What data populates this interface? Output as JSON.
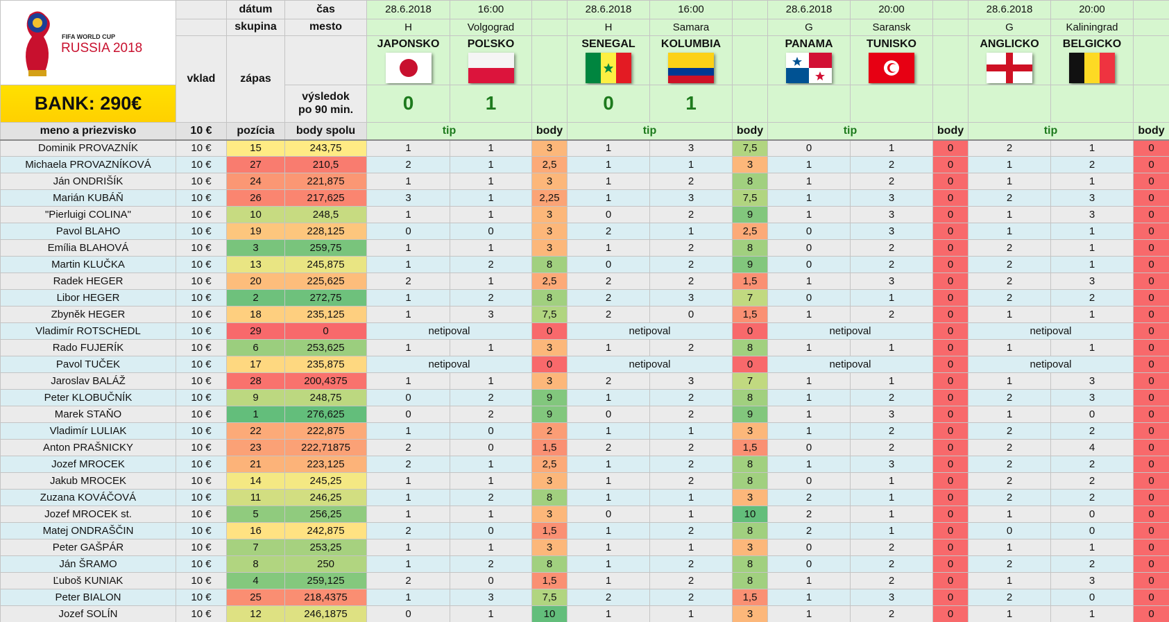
{
  "logo": {
    "line1": "FIFA WORLD CUP",
    "line2": "RUSSIA 2018"
  },
  "bank": "BANK: 290€",
  "labels": {
    "date": "dátum",
    "group": "skupina",
    "time": "čas",
    "city": "mesto",
    "stake": "vklad",
    "match": "zápas",
    "result": [
      "výsledok",
      "po 90 min."
    ],
    "stake_amount": "10 €",
    "name": "meno a priezvisko",
    "position": "pozícia",
    "total": "body spolu",
    "tip": "tip",
    "points": "body"
  },
  "matches": [
    {
      "date": "28.6.2018",
      "time": "16:00",
      "group": "H",
      "city": "Volgograd",
      "teams": [
        "JAPONSKO",
        "POĽSKO"
      ],
      "score": [
        "0",
        "1"
      ]
    },
    {
      "date": "28.6.2018",
      "time": "16:00",
      "group": "H",
      "city": "Samara",
      "teams": [
        "SENEGAL",
        "KOLUMBIA"
      ],
      "score": [
        "0",
        "1"
      ]
    },
    {
      "date": "28.6.2018",
      "time": "20:00",
      "group": "G",
      "city": "Saransk",
      "teams": [
        "PANAMA",
        "TUNISKO"
      ]
    },
    {
      "date": "28.6.2018",
      "time": "20:00",
      "group": "G",
      "city": "Kaliningrad",
      "teams": [
        "ANGLICKO",
        "BELGICKO"
      ]
    }
  ],
  "rows": [
    {
      "name": "Dominik PROVAZNÍK",
      "stake": "10 €",
      "position": "15",
      "total": "243,75",
      "picks": [
        [
          "1",
          "1",
          "3"
        ],
        [
          "1",
          "3",
          "7,5"
        ],
        [
          "0",
          "1",
          "0"
        ],
        [
          "2",
          "1",
          "0"
        ]
      ]
    },
    {
      "name": "Michaela PROVAZNÍKOVÁ",
      "stake": "10 €",
      "position": "27",
      "total": "210,5",
      "picks": [
        [
          "2",
          "1",
          "2,5"
        ],
        [
          "1",
          "1",
          "3"
        ],
        [
          "1",
          "2",
          "0"
        ],
        [
          "1",
          "2",
          "0"
        ]
      ]
    },
    {
      "name": "Ján ONDRIŠÍK",
      "stake": "10 €",
      "position": "24",
      "total": "221,875",
      "picks": [
        [
          "1",
          "1",
          "3"
        ],
        [
          "1",
          "2",
          "8"
        ],
        [
          "1",
          "2",
          "0"
        ],
        [
          "1",
          "1",
          "0"
        ]
      ]
    },
    {
      "name": "Marián KUBÁŇ",
      "stake": "10 €",
      "position": "26",
      "total": "217,625",
      "picks": [
        [
          "3",
          "1",
          "2,25"
        ],
        [
          "1",
          "3",
          "7,5"
        ],
        [
          "1",
          "3",
          "0"
        ],
        [
          "2",
          "3",
          "0"
        ]
      ]
    },
    {
      "name": "\"Pierluigi COLINA\"",
      "stake": "10 €",
      "position": "10",
      "total": "248,5",
      "picks": [
        [
          "1",
          "1",
          "3"
        ],
        [
          "0",
          "2",
          "9"
        ],
        [
          "1",
          "3",
          "0"
        ],
        [
          "1",
          "3",
          "0"
        ]
      ]
    },
    {
      "name": "Pavol BLAHO",
      "stake": "10 €",
      "position": "19",
      "total": "228,125",
      "picks": [
        [
          "0",
          "0",
          "3"
        ],
        [
          "2",
          "1",
          "2,5"
        ],
        [
          "0",
          "3",
          "0"
        ],
        [
          "1",
          "1",
          "0"
        ]
      ]
    },
    {
      "name": "Emília BLAHOVÁ",
      "stake": "10 €",
      "position": "3",
      "total": "259,75",
      "picks": [
        [
          "1",
          "1",
          "3"
        ],
        [
          "1",
          "2",
          "8"
        ],
        [
          "0",
          "2",
          "0"
        ],
        [
          "2",
          "1",
          "0"
        ]
      ]
    },
    {
      "name": "Martin KLUČKA",
      "stake": "10 €",
      "position": "13",
      "total": "245,875",
      "picks": [
        [
          "1",
          "2",
          "8"
        ],
        [
          "0",
          "2",
          "9"
        ],
        [
          "0",
          "2",
          "0"
        ],
        [
          "2",
          "1",
          "0"
        ]
      ]
    },
    {
      "name": "Radek HEGER",
      "stake": "10 €",
      "position": "20",
      "total": "225,625",
      "picks": [
        [
          "2",
          "1",
          "2,5"
        ],
        [
          "2",
          "2",
          "1,5"
        ],
        [
          "1",
          "3",
          "0"
        ],
        [
          "2",
          "3",
          "0"
        ]
      ]
    },
    {
      "name": "Libor HEGER",
      "stake": "10 €",
      "position": "2",
      "total": "272,75",
      "picks": [
        [
          "1",
          "2",
          "8"
        ],
        [
          "2",
          "3",
          "7"
        ],
        [
          "0",
          "1",
          "0"
        ],
        [
          "2",
          "2",
          "0"
        ]
      ]
    },
    {
      "name": "Zbyněk HEGER",
      "stake": "10 €",
      "position": "18",
      "total": "235,125",
      "picks": [
        [
          "1",
          "3",
          "7,5"
        ],
        [
          "2",
          "0",
          "1,5"
        ],
        [
          "1",
          "2",
          "0"
        ],
        [
          "1",
          "1",
          "0"
        ]
      ]
    },
    {
      "name": "Vladimír ROTSCHEDL",
      "stake": "10 €",
      "position": "29",
      "total": "0",
      "picks": [
        [
          "netipoval",
          "0"
        ],
        [
          "netipoval",
          "0"
        ],
        [
          "netipoval",
          "0"
        ],
        [
          "netipoval",
          "0"
        ]
      ]
    },
    {
      "name": "Rado FUJERÍK",
      "stake": "10 €",
      "position": "6",
      "total": "253,625",
      "picks": [
        [
          "1",
          "1",
          "3"
        ],
        [
          "1",
          "2",
          "8"
        ],
        [
          "1",
          "1",
          "0"
        ],
        [
          "1",
          "1",
          "0"
        ]
      ]
    },
    {
      "name": "Pavol TUČEK",
      "stake": "10 €",
      "position": "17",
      "total": "235,875",
      "picks": [
        [
          "netipoval",
          "0"
        ],
        [
          "netipoval",
          "0"
        ],
        [
          "netipoval",
          "0"
        ],
        [
          "netipoval",
          "0"
        ]
      ]
    },
    {
      "name": "Jaroslav BALÁŽ",
      "stake": "10 €",
      "position": "28",
      "total": "200,4375",
      "picks": [
        [
          "1",
          "1",
          "3"
        ],
        [
          "2",
          "3",
          "7"
        ],
        [
          "1",
          "1",
          "0"
        ],
        [
          "1",
          "3",
          "0"
        ]
      ]
    },
    {
      "name": "Peter KLOBUČNÍK",
      "stake": "10 €",
      "position": "9",
      "total": "248,75",
      "picks": [
        [
          "0",
          "2",
          "9"
        ],
        [
          "1",
          "2",
          "8"
        ],
        [
          "1",
          "2",
          "0"
        ],
        [
          "2",
          "3",
          "0"
        ]
      ]
    },
    {
      "name": "Marek STAŇO",
      "stake": "10 €",
      "position": "1",
      "total": "276,625",
      "picks": [
        [
          "0",
          "2",
          "9"
        ],
        [
          "0",
          "2",
          "9"
        ],
        [
          "1",
          "3",
          "0"
        ],
        [
          "1",
          "0",
          "0"
        ]
      ]
    },
    {
      "name": "Vladimír LULIAK",
      "stake": "10 €",
      "position": "22",
      "total": "222,875",
      "picks": [
        [
          "1",
          "0",
          "2"
        ],
        [
          "1",
          "1",
          "3"
        ],
        [
          "1",
          "2",
          "0"
        ],
        [
          "2",
          "2",
          "0"
        ]
      ]
    },
    {
      "name": "Anton PRAŠNICKY",
      "stake": "10 €",
      "position": "23",
      "total": "222,71875",
      "picks": [
        [
          "2",
          "0",
          "1,5"
        ],
        [
          "2",
          "2",
          "1,5"
        ],
        [
          "0",
          "2",
          "0"
        ],
        [
          "2",
          "4",
          "0"
        ]
      ]
    },
    {
      "name": "Jozef MROCEK",
      "stake": "10 €",
      "position": "21",
      "total": "223,125",
      "picks": [
        [
          "2",
          "1",
          "2,5"
        ],
        [
          "1",
          "2",
          "8"
        ],
        [
          "1",
          "3",
          "0"
        ],
        [
          "2",
          "2",
          "0"
        ]
      ]
    },
    {
      "name": "Jakub MROCEK",
      "stake": "10 €",
      "position": "14",
      "total": "245,25",
      "picks": [
        [
          "1",
          "1",
          "3"
        ],
        [
          "1",
          "2",
          "8"
        ],
        [
          "0",
          "1",
          "0"
        ],
        [
          "2",
          "2",
          "0"
        ]
      ]
    },
    {
      "name": "Zuzana KOVÁČOVÁ",
      "stake": "10 €",
      "position": "11",
      "total": "246,25",
      "picks": [
        [
          "1",
          "2",
          "8"
        ],
        [
          "1",
          "1",
          "3"
        ],
        [
          "2",
          "1",
          "0"
        ],
        [
          "2",
          "2",
          "0"
        ]
      ]
    },
    {
      "name": "Jozef MROCEK st.",
      "stake": "10 €",
      "position": "5",
      "total": "256,25",
      "picks": [
        [
          "1",
          "1",
          "3"
        ],
        [
          "0",
          "1",
          "10"
        ],
        [
          "2",
          "1",
          "0"
        ],
        [
          "1",
          "0",
          "0"
        ]
      ]
    },
    {
      "name": "Matej ONDRAŠČIN",
      "stake": "10 €",
      "position": "16",
      "total": "242,875",
      "picks": [
        [
          "2",
          "0",
          "1,5"
        ],
        [
          "1",
          "2",
          "8"
        ],
        [
          "2",
          "1",
          "0"
        ],
        [
          "0",
          "0",
          "0"
        ]
      ]
    },
    {
      "name": "Peter GAŠPÁR",
      "stake": "10 €",
      "position": "7",
      "total": "253,25",
      "picks": [
        [
          "1",
          "1",
          "3"
        ],
        [
          "1",
          "1",
          "3"
        ],
        [
          "0",
          "2",
          "0"
        ],
        [
          "1",
          "1",
          "0"
        ]
      ]
    },
    {
      "name": "Ján ŠRAMO",
      "stake": "10 €",
      "position": "8",
      "total": "250",
      "picks": [
        [
          "1",
          "2",
          "8"
        ],
        [
          "1",
          "2",
          "8"
        ],
        [
          "0",
          "2",
          "0"
        ],
        [
          "2",
          "2",
          "0"
        ]
      ]
    },
    {
      "name": "Ľuboš KUNIAK",
      "stake": "10 €",
      "position": "4",
      "total": "259,125",
      "picks": [
        [
          "2",
          "0",
          "1,5"
        ],
        [
          "1",
          "2",
          "8"
        ],
        [
          "1",
          "2",
          "0"
        ],
        [
          "1",
          "3",
          "0"
        ]
      ]
    },
    {
      "name": "Peter BIALON",
      "stake": "10 €",
      "position": "25",
      "total": "218,4375",
      "picks": [
        [
          "1",
          "3",
          "7,5"
        ],
        [
          "2",
          "2",
          "1,5"
        ],
        [
          "1",
          "3",
          "0"
        ],
        [
          "2",
          "0",
          "0"
        ]
      ]
    },
    {
      "name": "Jozef SOLÍN",
      "stake": "10 €",
      "position": "12",
      "total": "246,1875",
      "picks": [
        [
          "0",
          "1",
          "10"
        ],
        [
          "1",
          "1",
          "3"
        ],
        [
          "1",
          "2",
          "0"
        ],
        [
          "1",
          "1",
          "0"
        ]
      ]
    }
  ]
}
